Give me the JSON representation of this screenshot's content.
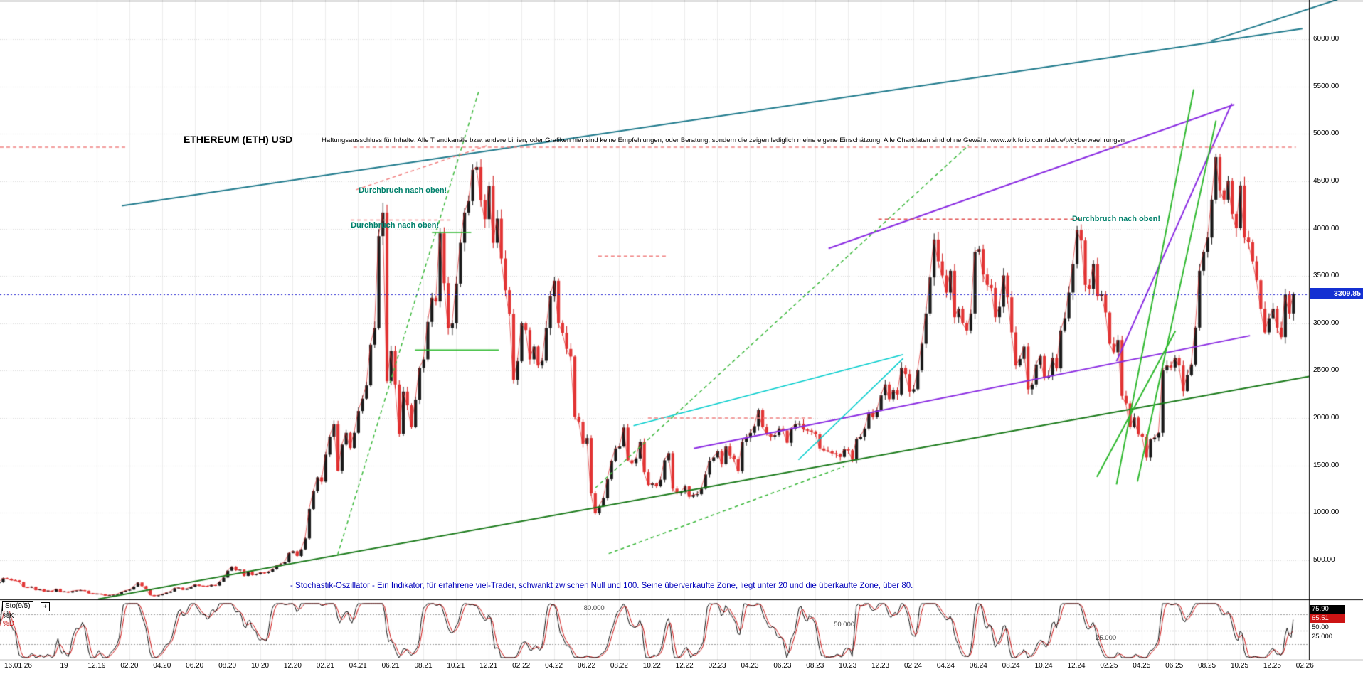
{
  "header": {
    "title": "ETHEREUM (ETH) USD",
    "disclaimer": "Haftungsausschluss für Inhalte: Alle Trendkanäle bzw. andere Linien, oder Grafiken hier sind keine Empfehlungen, oder Beratung, sondern die zeigen lediglich meine eigene Einschätzung. Alle Chartdaten sind ohne Gewähr. www.wikifolio.com/de/de/p/cyberwaehrungen"
  },
  "icons": {
    "expand": "+"
  },
  "chart_data": {
    "type": "candlestick",
    "symbol": "ETHEREUM (ETH) USD",
    "interval": "weekly",
    "ylim": [
      500,
      6000
    ],
    "y_ticks": [
      "6000.00",
      "5500.00",
      "5000.00",
      "4500.00",
      "4000.00",
      "3500.00",
      "3000.00",
      "2500.00",
      "2000.00",
      "1500.00",
      "1000.00",
      "500.00"
    ],
    "x_labels": [
      "16.01.26",
      "19",
      "12.19",
      "02.20",
      "04.20",
      "06.20",
      "08.20",
      "10.20",
      "12.20",
      "02.21",
      "04.21",
      "06.21",
      "08.21",
      "10.21",
      "12.21",
      "02.22",
      "04.22",
      "06.22",
      "08.22",
      "10.22",
      "12.22",
      "02.23",
      "04.23",
      "06.23",
      "08.23",
      "10.23",
      "12.23",
      "02.24",
      "04.24",
      "06.24",
      "08.24",
      "10.24",
      "12.24",
      "02.25",
      "04.25",
      "06.25",
      "08.25",
      "10.25",
      "12.25",
      "02.26"
    ],
    "last_price": "3309.85",
    "closes": [
      268,
      310,
      305,
      290,
      288,
      270,
      218,
      211,
      222,
      185,
      195,
      172,
      180,
      170,
      198,
      166,
      171,
      160,
      176,
      182,
      185,
      178,
      152,
      146,
      148,
      142,
      128,
      132,
      136,
      144,
      167,
      180,
      190,
      223,
      265,
      227,
      198,
      133,
      123,
      131,
      143,
      158,
      171,
      206,
      211,
      189,
      201,
      220,
      243,
      231,
      229,
      225,
      239,
      233,
      275,
      317,
      390,
      433,
      395,
      400,
      335,
      384,
      344,
      353,
      370,
      365,
      380,
      405,
      445,
      460,
      482,
      576,
      595,
      545,
      615,
      730,
      1040,
      1230,
      1375,
      1330,
      1615,
      1805,
      1935,
      1445,
      1720,
      1845,
      1685,
      1845,
      2075,
      2205,
      2345,
      2775,
      2950,
      3920,
      4170,
      2390,
      2710,
      2355,
      1835,
      2280,
      2135,
      1905,
      2195,
      2530,
      2620,
      3015,
      3270,
      3230,
      3950,
      3425,
      2950,
      3000,
      3420,
      3850,
      4170,
      4290,
      4620,
      4650,
      4300,
      4100,
      4450,
      3850,
      4105,
      3685,
      3350,
      3100,
      2405,
      2600,
      3000,
      2930,
      2620,
      2755,
      2555,
      2605,
      2950,
      3285,
      3450,
      3005,
      2900,
      2730,
      2650,
      2015,
      1960,
      1730,
      1790,
      1205,
      995,
      1070,
      1155,
      1355,
      1550,
      1680,
      1700,
      1900,
      1555,
      1525,
      1575,
      1750,
      1430,
      1295,
      1310,
      1280,
      1350,
      1555,
      1630,
      1255,
      1205,
      1220,
      1280,
      1170,
      1190,
      1197,
      1255,
      1405,
      1550,
      1585,
      1650,
      1515,
      1700,
      1605,
      1565,
      1440,
      1750,
      1795,
      1845,
      1915,
      2085,
      1905,
      1835,
      1805,
      1820,
      1890,
      1870,
      1740,
      1890,
      1935,
      1940,
      1880,
      1870,
      1860,
      1830,
      1680,
      1660,
      1650,
      1630,
      1620,
      1590,
      1670,
      1660,
      1560,
      1780,
      1805,
      1890,
      2055,
      2010,
      2085,
      2240,
      2355,
      2200,
      2295,
      2250,
      2530,
      2465,
      2280,
      2305,
      2505,
      2785,
      3105,
      3485,
      3885,
      3655,
      3505,
      3325,
      3555,
      3065,
      3155,
      3005,
      2925,
      3105,
      3755,
      3785,
      3515,
      3405,
      3375,
      3065,
      3175,
      3505,
      3275,
      2905,
      2555,
      2625,
      2755,
      2305,
      2355,
      2565,
      2655,
      2425,
      2445,
      2635,
      2525,
      2925,
      3055,
      3325,
      3625,
      3985,
      3875,
      3405,
      3365,
      3625,
      3285,
      3305,
      3115,
      2785,
      2695,
      2825,
      2235,
      2155,
      1905,
      2005,
      1835,
      1805,
      1585,
      1775,
      1795,
      1845,
      2505,
      2555,
      2535,
      2635,
      2555,
      2285,
      2455,
      2565,
      2955,
      3555,
      3755,
      3905,
      4305,
      4755,
      4405,
      4305,
      4505,
      4155,
      4005,
      4455,
      3905,
      3855,
      3655,
      3455,
      3155,
      2905,
      3055,
      3155,
      2955,
      2855,
      3305,
      3105,
      3309.85
    ],
    "annotations": [
      {
        "text": "Durchbruch nach oben!",
        "t": 0.274,
        "price": 4450
      },
      {
        "text": "Durchbruch nach oben!",
        "t": 0.268,
        "price": 4080
      },
      {
        "text": "Durchbruch nach oben!",
        "t": 0.819,
        "price": 4150
      }
    ],
    "trendlines": [
      {
        "name": "teal-channel-upper",
        "color": "#1f7a8c",
        "width": 2,
        "dash": [],
        "pts": [
          [
            0.093,
            4240
          ],
          [
            0.995,
            6110
          ]
        ]
      },
      {
        "name": "teal-upper-2",
        "color": "#1f7a8c",
        "width": 2,
        "dash": [],
        "pts": [
          [
            0.925,
            5980
          ],
          [
            1.04,
            6500
          ]
        ]
      },
      {
        "name": "purple-channel-upper",
        "color": "#8a2be2",
        "width": 2,
        "dash": [],
        "pts": [
          [
            0.633,
            3790
          ],
          [
            0.943,
            5310
          ]
        ]
      },
      {
        "name": "purple-channel-lower",
        "color": "#8a2be2",
        "width": 2,
        "dash": [],
        "pts": [
          [
            0.53,
            1680
          ],
          [
            0.955,
            2870
          ]
        ]
      },
      {
        "name": "purple-steep",
        "color": "#8a2be2",
        "width": 2,
        "dash": [],
        "pts": [
          [
            0.853,
            2600
          ],
          [
            0.941,
            5320
          ]
        ]
      },
      {
        "name": "green-support-long",
        "color": "#1a7a1a",
        "width": 2,
        "dash": [],
        "pts": [
          [
            0.075,
            90
          ],
          [
            1.0,
            2440
          ]
        ]
      },
      {
        "name": "green-steep-1",
        "color": "#2eb82e",
        "width": 2,
        "dash": [],
        "pts": [
          [
            0.853,
            1300
          ],
          [
            0.912,
            5470
          ]
        ]
      },
      {
        "name": "green-steep-2",
        "color": "#2eb82e",
        "width": 2,
        "dash": [],
        "pts": [
          [
            0.869,
            1330
          ],
          [
            0.929,
            5140
          ]
        ]
      },
      {
        "name": "green-mid",
        "color": "#2eb82e",
        "width": 2,
        "dash": [],
        "pts": [
          [
            0.838,
            1380
          ],
          [
            0.898,
            2920
          ]
        ]
      },
      {
        "name": "green-dashed-2021",
        "color": "#3cb83c",
        "width": 1.5,
        "dash": [
          5,
          4
        ],
        "pts": [
          [
            0.258,
            560
          ],
          [
            0.366,
            5460
          ]
        ]
      },
      {
        "name": "green-dashed-2023",
        "color": "#3cb83c",
        "width": 1.5,
        "dash": [
          5,
          4
        ],
        "pts": [
          [
            0.455,
            1265
          ],
          [
            0.74,
            4880
          ]
        ]
      },
      {
        "name": "green-dashed-2022",
        "color": "#3cb83c",
        "width": 1.5,
        "dash": [
          5,
          4
        ],
        "pts": [
          [
            0.465,
            570
          ],
          [
            0.645,
            1490
          ]
        ]
      },
      {
        "name": "cyan-line-1",
        "color": "#00cccc",
        "width": 1.5,
        "dash": [],
        "pts": [
          [
            0.484,
            1920
          ],
          [
            0.69,
            2670
          ]
        ]
      },
      {
        "name": "cyan-line-2",
        "color": "#00cccc",
        "width": 1.5,
        "dash": [],
        "pts": [
          [
            0.61,
            1560
          ],
          [
            0.69,
            2630
          ]
        ]
      },
      {
        "name": "red-resistance-4860-left",
        "color": "#f08080",
        "width": 1.5,
        "dash": [
          5,
          4
        ],
        "pts": [
          [
            0.0,
            4860
          ],
          [
            0.096,
            4860
          ]
        ]
      },
      {
        "name": "red-resistance-4860",
        "color": "#f08080",
        "width": 1.5,
        "dash": [
          5,
          4
        ],
        "pts": [
          [
            0.27,
            4860
          ],
          [
            0.99,
            4860
          ]
        ]
      },
      {
        "name": "red-resistance-4100",
        "color": "#e05050",
        "width": 1.5,
        "dash": [
          5,
          4
        ],
        "pts": [
          [
            0.671,
            4100
          ],
          [
            0.826,
            4100
          ]
        ]
      },
      {
        "name": "red-line-3700",
        "color": "#f08080",
        "width": 1.5,
        "dash": [
          5,
          4
        ],
        "pts": [
          [
            0.457,
            3710
          ],
          [
            0.51,
            3710
          ]
        ]
      },
      {
        "name": "red-line-2000",
        "color": "#f08080",
        "width": 1.5,
        "dash": [
          5,
          4
        ],
        "pts": [
          [
            0.495,
            2000
          ],
          [
            0.622,
            2000
          ]
        ]
      },
      {
        "name": "red-rising-2021",
        "color": "#f08080",
        "width": 1.5,
        "dash": [
          5,
          4
        ],
        "pts": [
          [
            0.272,
            4410
          ],
          [
            0.373,
            4880
          ]
        ]
      },
      {
        "name": "red-flat-4090",
        "color": "#f08080",
        "width": 1.5,
        "dash": [
          5,
          4
        ],
        "pts": [
          [
            0.268,
            4090
          ],
          [
            0.346,
            4090
          ]
        ]
      },
      {
        "name": "green-level-2720",
        "color": "#2eb82e",
        "width": 1.5,
        "dash": [],
        "pts": [
          [
            0.317,
            2720
          ],
          [
            0.381,
            2720
          ]
        ]
      },
      {
        "name": "green-level-3960",
        "color": "#2eb82e",
        "width": 1.5,
        "dash": [],
        "pts": [
          [
            0.33,
            3960
          ],
          [
            0.36,
            3960
          ]
        ]
      }
    ],
    "note": "- Stochastik-Oszillator - Ein Indikator, für erfahrene viel-Trader, schwankt zwischen Null und 100. Seine überverkaufte Zone, liegt unter 20 und die überkaufte Zone, über 80.",
    "oscillator": {
      "label": "Sto(9/5)",
      "k_label": "%K",
      "d_label": "%D",
      "k_value": "75.90",
      "d_value": "65.51",
      "right_labels": [
        "50.00",
        "25.000"
      ],
      "levels": [
        80,
        50,
        25
      ],
      "level_labels": [
        {
          "text": "80.000",
          "level": 80,
          "t": 0.446
        },
        {
          "text": "50.000",
          "level": 50,
          "t": 0.637
        },
        {
          "text": "25.000",
          "level": 25,
          "t": 0.837
        }
      ]
    },
    "colors": {
      "candle_up": "#1a1a1a",
      "candle_down": "#cc1414",
      "close_line": "#dd2222",
      "price_line": "#1f1fd0",
      "badge_blue": "#1430d2",
      "k_color": "#111111",
      "d_color": "#cc1414"
    }
  }
}
